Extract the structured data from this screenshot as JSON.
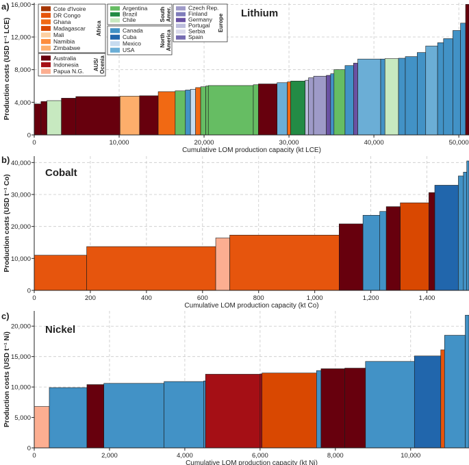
{
  "legend": {
    "groups": [
      {
        "region": "Africa",
        "items": [
          {
            "label": "Cote d'Ivoire",
            "color": "#a63603"
          },
          {
            "label": "DR Congo",
            "color": "#e6550d"
          },
          {
            "label": "Ghana",
            "color": "#f16913"
          },
          {
            "label": "Madagascar",
            "color": "#d94801"
          },
          {
            "label": "Mali",
            "color": "#fdd0a2"
          },
          {
            "label": "Namibia",
            "color": "#fd8d3c"
          },
          {
            "label": "Zimbabwe",
            "color": "#fdae6b"
          }
        ]
      },
      {
        "region": "AUS/ Ocenia",
        "items": [
          {
            "label": "Australia",
            "color": "#67000d"
          },
          {
            "label": "Indonesia",
            "color": "#a50f15"
          },
          {
            "label": "Papua N.G.",
            "color": "#fcae91"
          }
        ]
      },
      {
        "region": "South Amer.",
        "items": [
          {
            "label": "Argentina",
            "color": "#66bd63"
          },
          {
            "label": "Brazil",
            "color": "#238b45"
          },
          {
            "label": "Chile",
            "color": "#c7e9c0"
          }
        ]
      },
      {
        "region": "North America",
        "items": [
          {
            "label": "Canada",
            "color": "#4292c6"
          },
          {
            "label": "Cuba",
            "color": "#2166ac"
          },
          {
            "label": "Mexico",
            "color": "#c6dbef"
          },
          {
            "label": "USA",
            "color": "#6baed6"
          }
        ]
      },
      {
        "region": "Europe",
        "items": [
          {
            "label": "Czech Rep.",
            "color": "#9e9ac8"
          },
          {
            "label": "Finland",
            "color": "#807dba"
          },
          {
            "label": "Germany",
            "color": "#6a51a3"
          },
          {
            "label": "Portugal",
            "color": "#bcbddc"
          },
          {
            "label": "Serbia",
            "color": "#dadaeb"
          },
          {
            "label": "Spain",
            "color": "#756bb1"
          }
        ]
      }
    ]
  },
  "chart_data": [
    {
      "type": "bar",
      "panel": "a)",
      "title": "Lithium",
      "xlabel": "Cumulative LOM production capacity (kt LCE)",
      "ylabel": "Production costs (USD t⁻¹ LCE)",
      "xlim": [
        0,
        51200
      ],
      "ylim": [
        0,
        16200
      ],
      "xticks": [
        0,
        10000,
        20000,
        30000,
        40000,
        50000
      ],
      "xtick_labels": [
        "0",
        "10,000",
        "20,000",
        "30,000",
        "40,000",
        "50,000"
      ],
      "yticks": [
        0,
        4000,
        8000,
        12000,
        16000
      ],
      "ytick_labels": [
        "0",
        "4,000",
        "8,000",
        "12,000",
        "16,000"
      ],
      "bars": [
        {
          "x0": 0,
          "x1": 800,
          "value": 3800,
          "country": "Australia"
        },
        {
          "x0": 800,
          "x1": 1500,
          "value": 4100,
          "country": "Australia"
        },
        {
          "x0": 1500,
          "x1": 3200,
          "value": 4200,
          "country": "Chile"
        },
        {
          "x0": 3200,
          "x1": 4900,
          "value": 4500,
          "country": "Australia"
        },
        {
          "x0": 4900,
          "x1": 10100,
          "value": 4700,
          "country": "Australia"
        },
        {
          "x0": 10100,
          "x1": 12400,
          "value": 4750,
          "country": "Zimbabwe"
        },
        {
          "x0": 12400,
          "x1": 14600,
          "value": 4800,
          "country": "Australia"
        },
        {
          "x0": 14600,
          "x1": 16600,
          "value": 5300,
          "country": "Ghana"
        },
        {
          "x0": 16600,
          "x1": 17800,
          "value": 5400,
          "country": "Argentina"
        },
        {
          "x0": 17800,
          "x1": 18400,
          "value": 5500,
          "country": "Canada"
        },
        {
          "x0": 18400,
          "x1": 19000,
          "value": 5600,
          "country": "Mexico"
        },
        {
          "x0": 19000,
          "x1": 19600,
          "value": 5800,
          "country": "Ghana"
        },
        {
          "x0": 19600,
          "x1": 20200,
          "value": 5900,
          "country": "Argentina"
        },
        {
          "x0": 20200,
          "x1": 20500,
          "value": 6000,
          "country": "Argentina"
        },
        {
          "x0": 20500,
          "x1": 25800,
          "value": 6050,
          "country": "Argentina"
        },
        {
          "x0": 25800,
          "x1": 26400,
          "value": 6150,
          "country": "Argentina"
        },
        {
          "x0": 26400,
          "x1": 28600,
          "value": 6250,
          "country": "Australia"
        },
        {
          "x0": 28600,
          "x1": 29800,
          "value": 6400,
          "country": "USA"
        },
        {
          "x0": 29800,
          "x1": 30200,
          "value": 6500,
          "country": "Ghana"
        },
        {
          "x0": 30200,
          "x1": 31900,
          "value": 6600,
          "country": "Brazil"
        },
        {
          "x0": 31900,
          "x1": 32300,
          "value": 6700,
          "country": "Portugal"
        },
        {
          "x0": 32300,
          "x1": 32900,
          "value": 7000,
          "country": "Czech Rep."
        },
        {
          "x0": 32900,
          "x1": 34400,
          "value": 7200,
          "country": "Czech Rep."
        },
        {
          "x0": 34400,
          "x1": 34900,
          "value": 7300,
          "country": "Germany"
        },
        {
          "x0": 34900,
          "x1": 35300,
          "value": 7500,
          "country": "Canada"
        },
        {
          "x0": 35300,
          "x1": 36600,
          "value": 8000,
          "country": "Argentina"
        },
        {
          "x0": 36600,
          "x1": 37600,
          "value": 8500,
          "country": "Canada"
        },
        {
          "x0": 37600,
          "x1": 38100,
          "value": 8800,
          "country": "Germany"
        },
        {
          "x0": 38100,
          "x1": 40800,
          "value": 9300,
          "country": "USA"
        },
        {
          "x0": 40800,
          "x1": 41300,
          "value": 9300,
          "country": "Canada"
        },
        {
          "x0": 41300,
          "x1": 42900,
          "value": 9350,
          "country": "Chile"
        },
        {
          "x0": 42900,
          "x1": 43700,
          "value": 9400,
          "country": "Canada"
        },
        {
          "x0": 43700,
          "x1": 45100,
          "value": 9600,
          "country": "Canada"
        },
        {
          "x0": 45100,
          "x1": 46100,
          "value": 10100,
          "country": "Canada"
        },
        {
          "x0": 46100,
          "x1": 47500,
          "value": 10900,
          "country": "USA"
        },
        {
          "x0": 47500,
          "x1": 48200,
          "value": 11300,
          "country": "Canada"
        },
        {
          "x0": 48200,
          "x1": 49300,
          "value": 11800,
          "country": "Canada"
        },
        {
          "x0": 49300,
          "x1": 50200,
          "value": 12800,
          "country": "Canada"
        },
        {
          "x0": 50200,
          "x1": 50800,
          "value": 13700,
          "country": "Canada"
        },
        {
          "x0": 50800,
          "x1": 51200,
          "value": 16000,
          "country": "Australia"
        }
      ]
    },
    {
      "type": "bar",
      "panel": "b)",
      "title": "Cobalt",
      "xlabel": "Cumulative LOM production capacity (kt Co)",
      "ylabel": "Production costs (USD t⁻¹ Co)",
      "xlim": [
        0,
        1550
      ],
      "ylim": [
        0,
        42000
      ],
      "xticks": [
        0,
        200,
        400,
        600,
        800,
        1000,
        1200,
        1400
      ],
      "xtick_labels": [
        "0",
        "200",
        "400",
        "600",
        "800",
        "1,000",
        "1,200",
        "1,400"
      ],
      "yticks": [
        0,
        10000,
        20000,
        30000,
        40000
      ],
      "ytick_labels": [
        "0",
        "10,000",
        "20,000",
        "30,000",
        "40,000"
      ],
      "bars": [
        {
          "x0": 0,
          "x1": 187,
          "value": 11000,
          "country": "DR Congo"
        },
        {
          "x0": 187,
          "x1": 647,
          "value": 13700,
          "country": "DR Congo"
        },
        {
          "x0": 647,
          "x1": 697,
          "value": 16400,
          "country": "Papua N.G."
        },
        {
          "x0": 697,
          "x1": 1087,
          "value": 17300,
          "country": "DR Congo"
        },
        {
          "x0": 1087,
          "x1": 1172,
          "value": 20800,
          "country": "Australia"
        },
        {
          "x0": 1172,
          "x1": 1232,
          "value": 23500,
          "country": "Canada"
        },
        {
          "x0": 1232,
          "x1": 1255,
          "value": 24700,
          "country": "Canada"
        },
        {
          "x0": 1255,
          "x1": 1305,
          "value": 26200,
          "country": "Australia"
        },
        {
          "x0": 1305,
          "x1": 1407,
          "value": 27400,
          "country": "Madagascar"
        },
        {
          "x0": 1407,
          "x1": 1428,
          "value": 30600,
          "country": "Australia"
        },
        {
          "x0": 1428,
          "x1": 1512,
          "value": 32900,
          "country": "Cuba"
        },
        {
          "x0": 1512,
          "x1": 1530,
          "value": 35800,
          "country": "Canada"
        },
        {
          "x0": 1530,
          "x1": 1542,
          "value": 37000,
          "country": "Canada"
        },
        {
          "x0": 1542,
          "x1": 1550,
          "value": 40500,
          "country": "Canada"
        }
      ]
    },
    {
      "type": "bar",
      "panel": "c)",
      "title": "Nickel",
      "xlabel": "Cumulative LOM production capacity (kt Ni)",
      "ylabel": "Production costs (USD t⁻¹ Ni)",
      "xlim": [
        0,
        11550
      ],
      "ylim": [
        0,
        22500
      ],
      "xticks": [
        0,
        2000,
        4000,
        6000,
        8000,
        10000
      ],
      "xtick_labels": [
        "0",
        "2,000",
        "4,000",
        "6,000",
        "8,000",
        "10,000"
      ],
      "yticks": [
        0,
        5000,
        10000,
        15000,
        20000
      ],
      "ytick_labels": [
        "0",
        "5,000",
        "10,000",
        "15,000",
        "20,000"
      ],
      "bars": [
        {
          "x0": 0,
          "x1": 400,
          "value": 6800,
          "country": "Papua N.G."
        },
        {
          "x0": 400,
          "x1": 1400,
          "value": 9900,
          "country": "Canada"
        },
        {
          "x0": 1400,
          "x1": 1850,
          "value": 10400,
          "country": "Australia"
        },
        {
          "x0": 1850,
          "x1": 3450,
          "value": 10600,
          "country": "Canada"
        },
        {
          "x0": 3450,
          "x1": 4500,
          "value": 10900,
          "country": "Canada"
        },
        {
          "x0": 4500,
          "x1": 4550,
          "value": 11000,
          "country": "Canada"
        },
        {
          "x0": 4550,
          "x1": 6000,
          "value": 12100,
          "country": "Indonesia"
        },
        {
          "x0": 6000,
          "x1": 6050,
          "value": 12150,
          "country": "Indonesia"
        },
        {
          "x0": 6050,
          "x1": 7500,
          "value": 12300,
          "country": "Madagascar"
        },
        {
          "x0": 7500,
          "x1": 7620,
          "value": 12700,
          "country": "Canada"
        },
        {
          "x0": 7620,
          "x1": 8250,
          "value": 13000,
          "country": "Australia"
        },
        {
          "x0": 8250,
          "x1": 8800,
          "value": 13100,
          "country": "Australia"
        },
        {
          "x0": 8800,
          "x1": 10100,
          "value": 14200,
          "country": "Canada"
        },
        {
          "x0": 10100,
          "x1": 10800,
          "value": 15100,
          "country": "Cuba"
        },
        {
          "x0": 10800,
          "x1": 10900,
          "value": 16100,
          "country": "DR Congo"
        },
        {
          "x0": 10900,
          "x1": 11450,
          "value": 18500,
          "country": "Canada"
        },
        {
          "x0": 11450,
          "x1": 11550,
          "value": 21800,
          "country": "Canada"
        }
      ]
    }
  ]
}
